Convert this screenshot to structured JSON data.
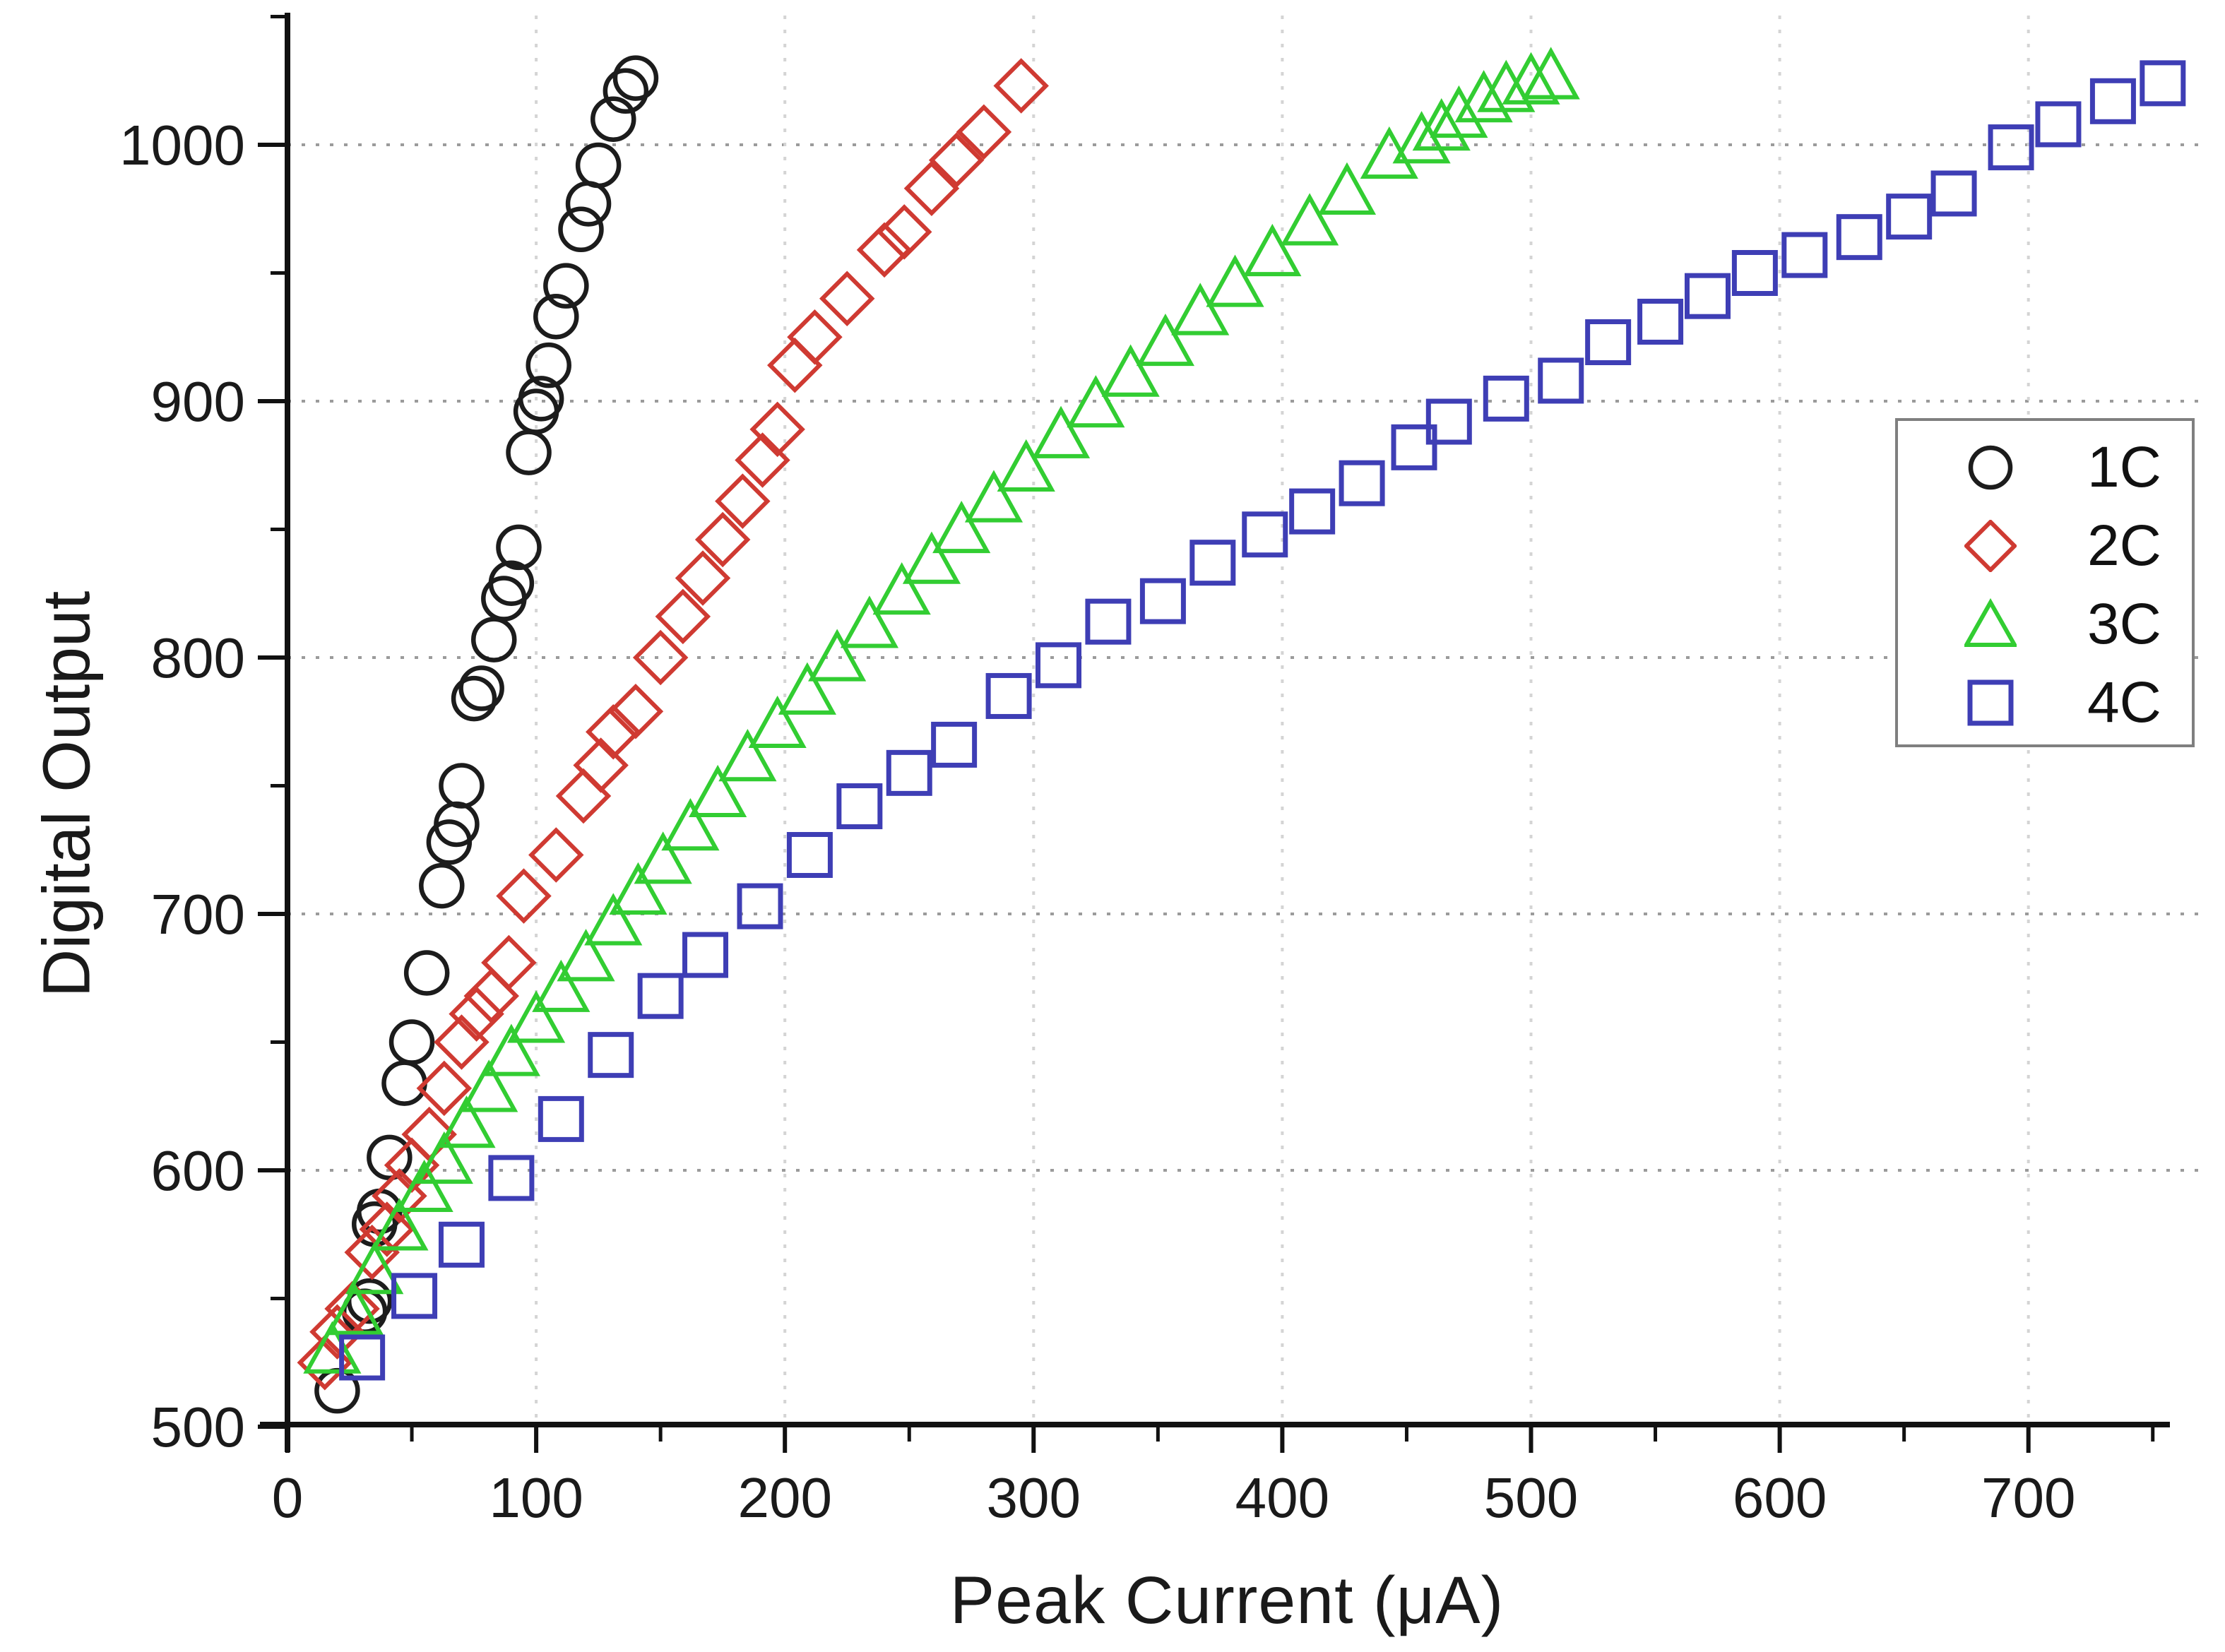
{
  "figure": {
    "xlabel": "Peak Current (μA)",
    "ylabel": "Digital Output"
  },
  "legend": {
    "position": "upper right",
    "items": [
      {
        "label": "1C",
        "marker": "circle",
        "color": "#1c1c1c"
      },
      {
        "label": "2C",
        "marker": "diamond",
        "color": "#cf3a32"
      },
      {
        "label": "3C",
        "marker": "triangle",
        "color": "#32cd32"
      },
      {
        "label": "4C",
        "marker": "square",
        "color": "#3e3eb5"
      }
    ]
  },
  "chart_data": {
    "type": "scatter",
    "title": "",
    "xlabel": "Peak Current (μA)",
    "ylabel": "Digital Output",
    "xlim": [
      0,
      760
    ],
    "ylim": [
      500,
      1050
    ],
    "grid": "dotted major gridlines",
    "legend_position": "upper right",
    "x_major_ticks": [
      0,
      100,
      200,
      300,
      400,
      500,
      600,
      700
    ],
    "x_minor_ticks": [
      50,
      150,
      250,
      350,
      450,
      550,
      650,
      750
    ],
    "y_major_ticks": [
      500,
      600,
      700,
      800,
      900,
      1000
    ],
    "y_minor_ticks": [
      550,
      650,
      750,
      850,
      950,
      1050
    ],
    "grid_vertical_x": [
      100,
      200,
      300,
      400,
      500,
      600,
      700
    ],
    "grid_horizontal_y": [
      600,
      700,
      800,
      900,
      1000
    ],
    "colors": {
      "axis": "#111111",
      "grid_h": "#9b9b9b",
      "grid_v": "#d4d4d4",
      "text": "#1a1a1a",
      "legend_border": "#7f7f7f"
    },
    "series": [
      {
        "name": "1C",
        "marker": "circle",
        "color": "#1c1c1c",
        "points": [
          [
            20,
            514
          ],
          [
            31,
            545
          ],
          [
            33,
            549
          ],
          [
            35,
            579
          ],
          [
            37,
            584
          ],
          [
            41,
            605
          ],
          [
            47,
            634
          ],
          [
            50,
            650
          ],
          [
            56,
            677
          ],
          [
            62,
            711
          ],
          [
            65,
            728
          ],
          [
            68,
            735
          ],
          [
            70,
            750
          ],
          [
            75,
            784
          ],
          [
            78,
            788
          ],
          [
            83,
            807
          ],
          [
            87,
            823
          ],
          [
            90,
            829
          ],
          [
            93,
            843
          ],
          [
            97,
            880
          ],
          [
            100,
            896
          ],
          [
            102,
            901
          ],
          [
            105,
            914
          ],
          [
            108,
            933
          ],
          [
            112,
            945
          ],
          [
            118,
            967
          ],
          [
            121,
            977
          ],
          [
            125,
            992
          ],
          [
            131,
            1010
          ],
          [
            136,
            1021
          ],
          [
            140,
            1026
          ]
        ]
      },
      {
        "name": "2C",
        "marker": "diamond",
        "color": "#cf3a32",
        "points": [
          [
            15,
            525
          ],
          [
            20,
            537
          ],
          [
            26,
            546
          ],
          [
            34,
            568
          ],
          [
            40,
            577
          ],
          [
            45,
            590
          ],
          [
            50,
            602
          ],
          [
            57,
            614
          ],
          [
            63,
            632
          ],
          [
            70,
            650
          ],
          [
            76,
            661
          ],
          [
            82,
            668
          ],
          [
            89,
            681
          ],
          [
            95,
            707
          ],
          [
            108,
            723
          ],
          [
            119,
            746
          ],
          [
            126,
            758
          ],
          [
            131,
            771
          ],
          [
            140,
            779
          ],
          [
            150,
            800
          ],
          [
            159,
            816
          ],
          [
            167,
            831
          ],
          [
            175,
            846
          ],
          [
            183,
            861
          ],
          [
            191,
            877
          ],
          [
            197,
            889
          ],
          [
            204,
            914
          ],
          [
            212,
            925
          ],
          [
            225,
            940
          ],
          [
            240,
            959
          ],
          [
            248,
            966
          ],
          [
            259,
            983
          ],
          [
            269,
            994
          ],
          [
            280,
            1005
          ],
          [
            295,
            1023
          ]
        ]
      },
      {
        "name": "3C",
        "marker": "triangle",
        "color": "#32cd32",
        "points": [
          [
            18,
            529
          ],
          [
            27,
            544
          ],
          [
            35,
            560
          ],
          [
            45,
            577
          ],
          [
            55,
            592
          ],
          [
            63,
            603
          ],
          [
            72,
            617
          ],
          [
            81,
            631
          ],
          [
            90,
            645
          ],
          [
            100,
            658
          ],
          [
            110,
            670
          ],
          [
            120,
            682
          ],
          [
            131,
            696
          ],
          [
            141,
            708
          ],
          [
            151,
            720
          ],
          [
            162,
            733
          ],
          [
            173,
            746
          ],
          [
            185,
            760
          ],
          [
            197,
            773
          ],
          [
            209,
            786
          ],
          [
            221,
            799
          ],
          [
            234,
            812
          ],
          [
            247,
            825
          ],
          [
            259,
            837
          ],
          [
            271,
            849
          ],
          [
            284,
            861
          ],
          [
            297,
            873
          ],
          [
            311,
            886
          ],
          [
            325,
            898
          ],
          [
            339,
            910
          ],
          [
            353,
            922
          ],
          [
            367,
            934
          ],
          [
            381,
            945
          ],
          [
            396,
            957
          ],
          [
            411,
            969
          ],
          [
            426,
            981
          ],
          [
            443,
            995
          ],
          [
            456,
            1001
          ],
          [
            464,
            1006
          ],
          [
            471,
            1011
          ],
          [
            481,
            1017
          ],
          [
            490,
            1021
          ],
          [
            500,
            1024
          ],
          [
            508,
            1026
          ]
        ]
      },
      {
        "name": "4C",
        "marker": "square",
        "color": "#3e3eb5",
        "points": [
          [
            30,
            527
          ],
          [
            51,
            551
          ],
          [
            70,
            571
          ],
          [
            90,
            597
          ],
          [
            110,
            620
          ],
          [
            130,
            645
          ],
          [
            150,
            668
          ],
          [
            168,
            684
          ],
          [
            190,
            703
          ],
          [
            210,
            723
          ],
          [
            230,
            742
          ],
          [
            250,
            755
          ],
          [
            268,
            766
          ],
          [
            290,
            785
          ],
          [
            310,
            797
          ],
          [
            330,
            814
          ],
          [
            352,
            822
          ],
          [
            372,
            837
          ],
          [
            393,
            848
          ],
          [
            412,
            857
          ],
          [
            432,
            868
          ],
          [
            453,
            882
          ],
          [
            467,
            892
          ],
          [
            490,
            901
          ],
          [
            512,
            908
          ],
          [
            531,
            923
          ],
          [
            552,
            931
          ],
          [
            571,
            941
          ],
          [
            590,
            950
          ],
          [
            610,
            957
          ],
          [
            632,
            964
          ],
          [
            652,
            972
          ],
          [
            670,
            981
          ],
          [
            693,
            999
          ],
          [
            712,
            1008
          ],
          [
            734,
            1017
          ],
          [
            754,
            1024
          ]
        ]
      }
    ]
  }
}
